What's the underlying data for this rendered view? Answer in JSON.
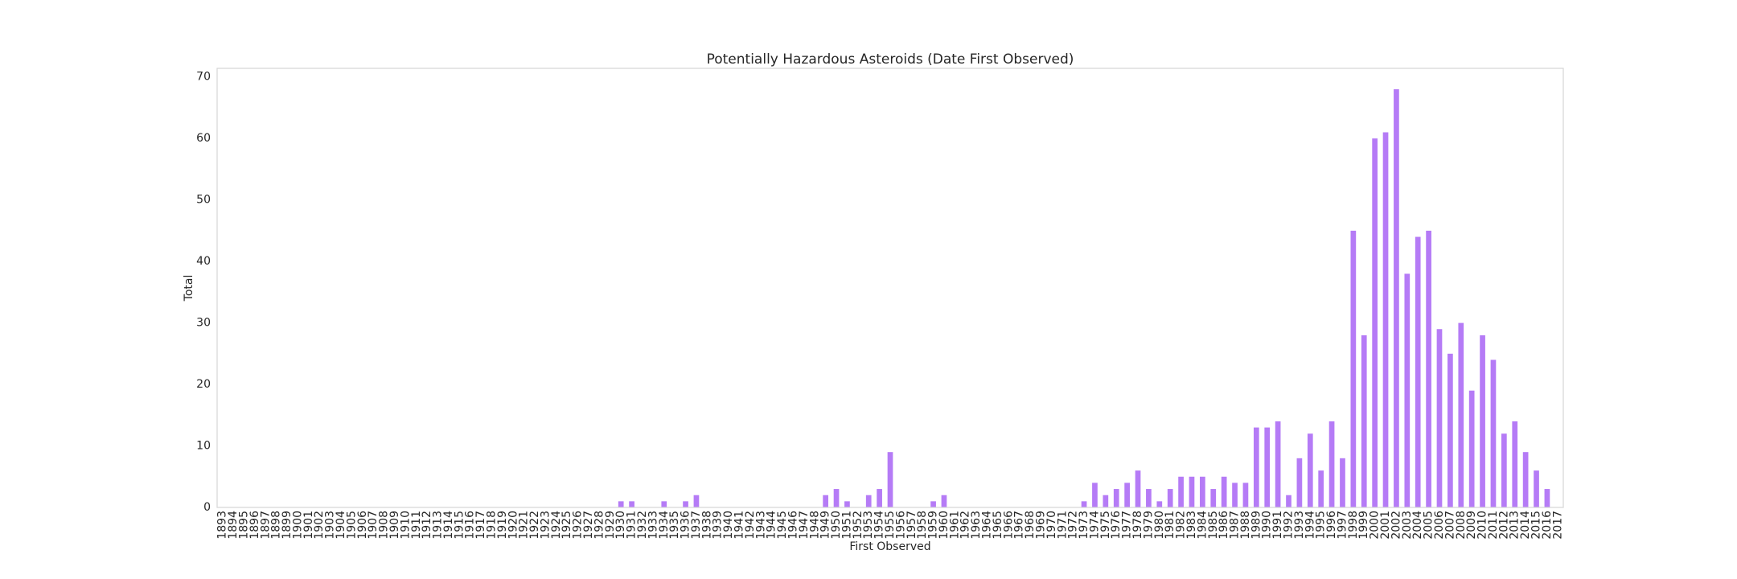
{
  "chart_data": {
    "type": "bar",
    "title": "Potentially Hazardous Asteroids (Date First Observed)",
    "x_label": "First Observed",
    "y_label": "Total",
    "color": "#b57bf6",
    "grid": false,
    "categories": [
      "1893",
      "1894",
      "1895",
      "1896",
      "1897",
      "1898",
      "1899",
      "1900",
      "1901",
      "1902",
      "1903",
      "1904",
      "1905",
      "1906",
      "1907",
      "1908",
      "1909",
      "1910",
      "1911",
      "1912",
      "1913",
      "1914",
      "1915",
      "1916",
      "1917",
      "1918",
      "1919",
      "1920",
      "1921",
      "1922",
      "1923",
      "1924",
      "1925",
      "1926",
      "1927",
      "1928",
      "1929",
      "1930",
      "1931",
      "1932",
      "1933",
      "1934",
      "1935",
      "1936",
      "1937",
      "1938",
      "1939",
      "1940",
      "1941",
      "1942",
      "1943",
      "1944",
      "1945",
      "1946",
      "1947",
      "1948",
      "1949",
      "1950",
      "1951",
      "1952",
      "1953",
      "1954",
      "1955",
      "1956",
      "1957",
      "1958",
      "1959",
      "1960",
      "1961",
      "1962",
      "1963",
      "1964",
      "1965",
      "1966",
      "1967",
      "1968",
      "1969",
      "1970",
      "1971",
      "1972",
      "1973",
      "1974",
      "1975",
      "1976",
      "1977",
      "1978",
      "1979",
      "1980",
      "1981",
      "1982",
      "1983",
      "1984",
      "1985",
      "1986",
      "1987",
      "1988",
      "1989",
      "1990",
      "1991",
      "1992",
      "1993",
      "1994",
      "1995",
      "1996",
      "1997",
      "1998",
      "1999",
      "2000",
      "2001",
      "2002",
      "2003",
      "2004",
      "2005",
      "2006",
      "2007",
      "2008",
      "2009",
      "2010",
      "2011",
      "2012",
      "2013",
      "2014",
      "2015",
      "2016",
      "2017"
    ],
    "values": [
      0,
      0,
      0,
      0,
      0,
      0,
      0,
      0,
      0,
      0,
      0,
      0,
      0,
      0,
      0,
      0,
      0,
      0,
      0,
      0,
      0,
      0,
      0,
      0,
      0,
      0,
      0,
      0,
      0,
      0,
      0,
      0,
      0,
      0,
      0,
      0,
      0,
      1,
      1,
      0,
      0,
      1,
      0,
      1,
      2,
      0,
      0,
      0,
      0,
      0,
      0,
      0,
      0,
      0,
      0,
      0,
      2,
      3,
      1,
      0,
      2,
      3,
      9,
      0,
      0,
      0,
      1,
      2,
      0,
      0,
      0,
      0,
      0,
      0,
      0,
      0,
      0,
      0,
      0,
      0,
      1,
      4,
      2,
      3,
      4,
      6,
      3,
      1,
      3,
      5,
      5,
      5,
      3,
      5,
      4,
      4,
      13,
      13,
      14,
      2,
      8,
      12,
      6,
      14,
      8,
      45,
      28,
      60,
      61,
      68,
      38,
      44,
      45,
      29,
      25,
      30,
      19,
      28,
      24,
      12,
      14,
      9,
      6,
      3,
      0
    ],
    "ylim": [
      0,
      71.4
    ],
    "yticks": [
      0,
      10,
      20,
      30,
      40,
      50,
      60,
      70
    ]
  }
}
